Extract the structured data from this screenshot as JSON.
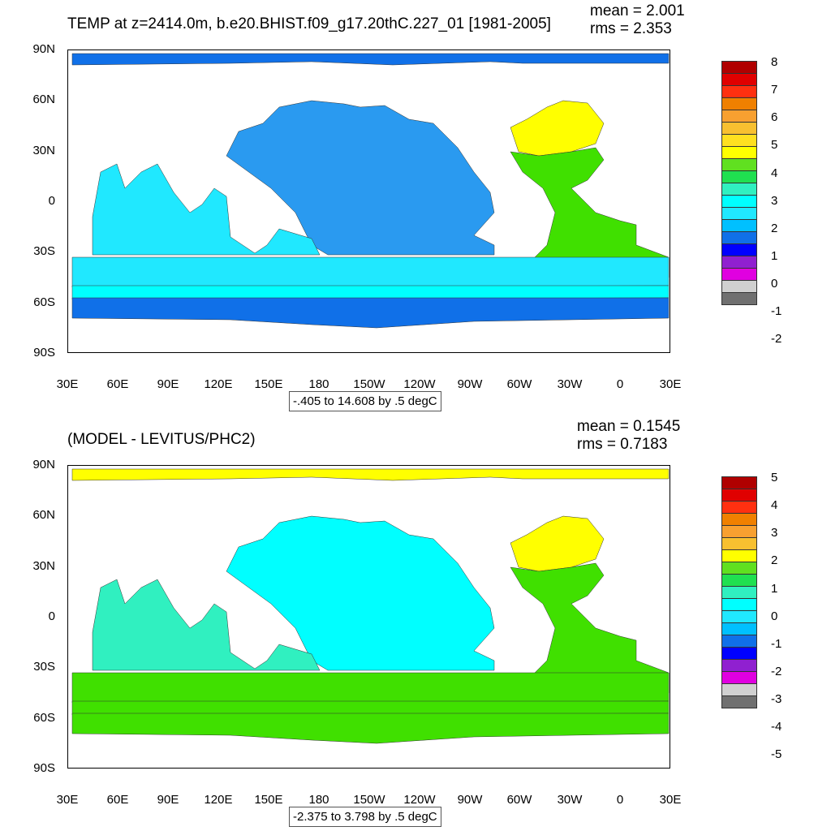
{
  "panels": [
    {
      "title": "TEMP at z=2414.0m, b.e20.BHIST.f09_g17.20thC.227_01 [1981-2005]",
      "mean": "mean = 2.001",
      "rms": "rms = 2.353",
      "info": "-.405 to 14.608 by .5 degC",
      "legend_labels": [
        "8",
        "7",
        "6",
        "5",
        "4",
        "3",
        "2",
        "1",
        "0",
        "-1",
        "-2"
      ],
      "legend_colors": [
        "#b00000",
        "#e00000",
        "#ff3010",
        "#f08000",
        "#f8a030",
        "#f8c030",
        "#ffe020",
        "#ffff00",
        "#60e020",
        "#20e050",
        "#30f0c0",
        "#00ffff",
        "#20e8ff",
        "#00c0ff",
        "#1070e8",
        "#0000ff",
        "#9020d0",
        "#e000e0",
        "#d0d0d0",
        "#707070"
      ],
      "ocean_regions": [
        {
          "name": "pacific",
          "color": "#2a9af0"
        },
        {
          "name": "southern-belt",
          "color": "#20e8ff"
        },
        {
          "name": "southern-cyan",
          "color": "#00ffff"
        },
        {
          "name": "antarctic",
          "color": "#1070e8"
        },
        {
          "name": "atlantic",
          "color": "#40e000"
        },
        {
          "name": "north-atlantic",
          "color": "#ffff00"
        },
        {
          "name": "arctic",
          "color": "#1070e8"
        },
        {
          "name": "indian",
          "color": "#20e8ff"
        }
      ]
    },
    {
      "title": "(MODEL - LEVITUS/PHC2)",
      "mean": "mean = 0.1545",
      "rms": "rms = 0.7183",
      "info": "-2.375 to 3.798 by .5 degC",
      "legend_labels": [
        "5",
        "4",
        "3",
        "2",
        "1",
        "0",
        "-1",
        "-2",
        "-3",
        "-4",
        "-5"
      ],
      "legend_colors": [
        "#b00000",
        "#e00000",
        "#ff3010",
        "#f08000",
        "#f8a030",
        "#f8c030",
        "#ffff00",
        "#60e020",
        "#20e050",
        "#30f0c0",
        "#00ffff",
        "#20e8ff",
        "#00c0ff",
        "#1070e8",
        "#0000ff",
        "#9020d0",
        "#e000e0",
        "#d0d0d0",
        "#707070"
      ],
      "ocean_regions": [
        {
          "name": "pacific",
          "color": "#00ffff"
        },
        {
          "name": "southern-belt",
          "color": "#40e000"
        },
        {
          "name": "southern-cyan",
          "color": "#40e000"
        },
        {
          "name": "antarctic",
          "color": "#40e000"
        },
        {
          "name": "atlantic",
          "color": "#40e000"
        },
        {
          "name": "north-atlantic",
          "color": "#ffff00"
        },
        {
          "name": "arctic",
          "color": "#ffff00"
        },
        {
          "name": "indian",
          "color": "#30f0c0"
        }
      ]
    }
  ],
  "axes": {
    "y_ticks": [
      "90N",
      "60N",
      "30N",
      "0",
      "30S",
      "60S",
      "90S"
    ],
    "x_ticks": [
      "30E",
      "60E",
      "90E",
      "120E",
      "150E",
      "180",
      "150W",
      "120W",
      "90W",
      "60W",
      "30W",
      "0",
      "30E"
    ]
  }
}
